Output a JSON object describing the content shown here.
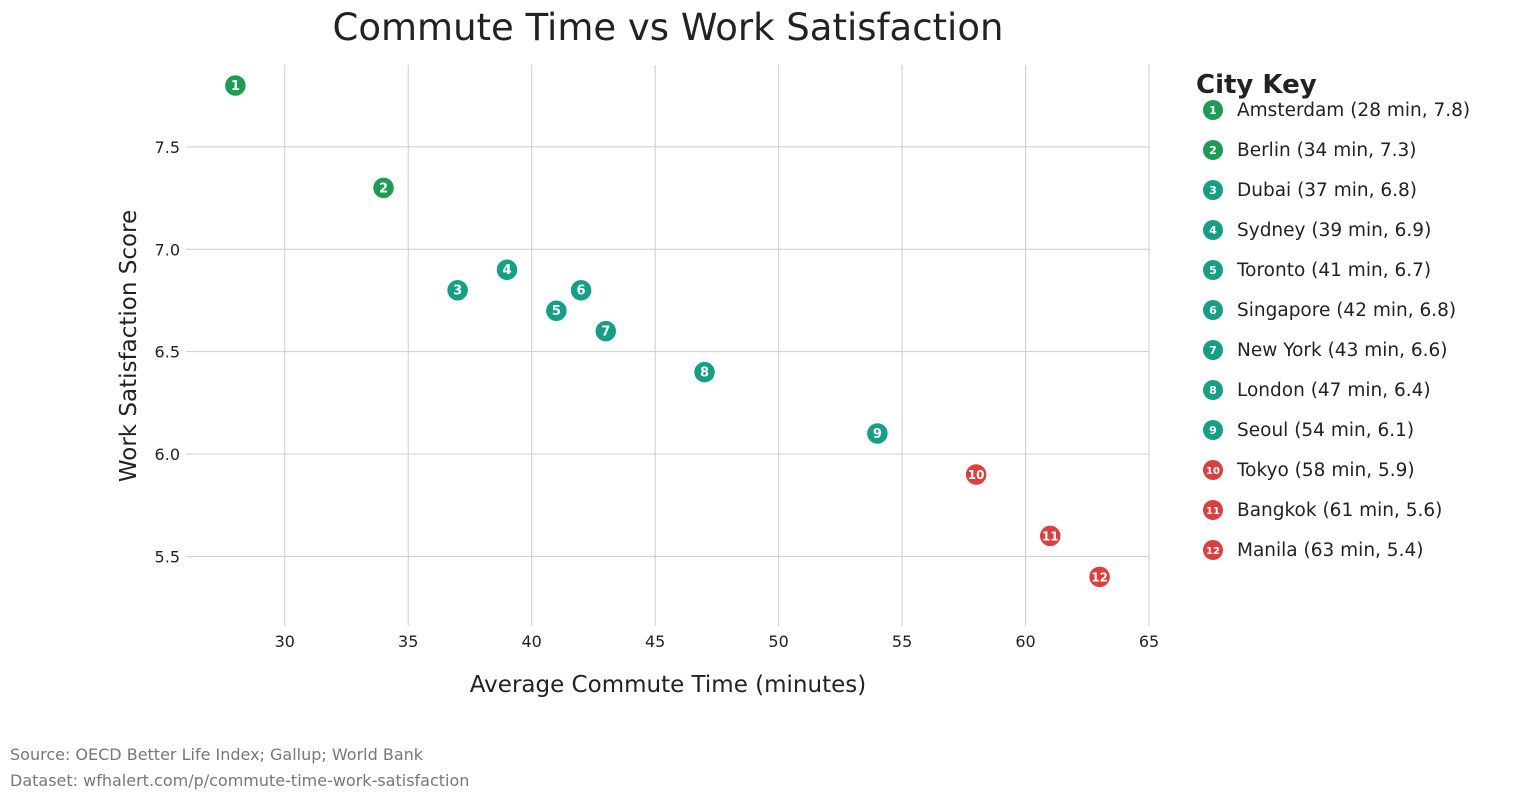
{
  "chart_data": {
    "type": "scatter",
    "title": "Commute Time vs Work Satisfaction",
    "xlabel": "Average Commute Time (minutes)",
    "ylabel": "Work Satisfaction Score",
    "xlim": [
      26,
      65
    ],
    "ylim": [
      5.16,
      7.9
    ],
    "xticks": [
      30,
      35,
      40,
      45,
      50,
      55,
      60,
      65
    ],
    "yticks": [
      5.5,
      6.0,
      6.5,
      7.0,
      7.5
    ],
    "grid": true,
    "legend_title": "City Key",
    "legend_placement": "right",
    "colors": {
      "high": "#1e9b55",
      "mid": "#179f85",
      "low": "#d94140"
    },
    "points": [
      {
        "id": "1",
        "city": "Amsterdam",
        "x": 28,
        "y": 7.8,
        "group": "high"
      },
      {
        "id": "2",
        "city": "Berlin",
        "x": 34,
        "y": 7.3,
        "group": "high"
      },
      {
        "id": "3",
        "city": "Dubai",
        "x": 37,
        "y": 6.8,
        "group": "mid"
      },
      {
        "id": "4",
        "city": "Sydney",
        "x": 39,
        "y": 6.9,
        "group": "mid"
      },
      {
        "id": "5",
        "city": "Toronto",
        "x": 41,
        "y": 6.7,
        "group": "mid"
      },
      {
        "id": "6",
        "city": "Singapore",
        "x": 42,
        "y": 6.8,
        "group": "mid"
      },
      {
        "id": "7",
        "city": "New York",
        "x": 43,
        "y": 6.6,
        "group": "mid"
      },
      {
        "id": "8",
        "city": "London",
        "x": 47,
        "y": 6.4,
        "group": "mid"
      },
      {
        "id": "9",
        "city": "Seoul",
        "x": 54,
        "y": 6.1,
        "group": "mid"
      },
      {
        "id": "10",
        "city": "Tokyo",
        "x": 58,
        "y": 5.9,
        "group": "low"
      },
      {
        "id": "11",
        "city": "Bangkok",
        "x": 61,
        "y": 5.6,
        "group": "low"
      },
      {
        "id": "12",
        "city": "Manila",
        "x": 63,
        "y": 5.4,
        "group": "low"
      }
    ]
  },
  "footer": {
    "source": "Source: OECD Better Life Index; Gallup; World Bank",
    "dataset": "Dataset: wfhalert.com/p/commute-time-work-satisfaction"
  }
}
